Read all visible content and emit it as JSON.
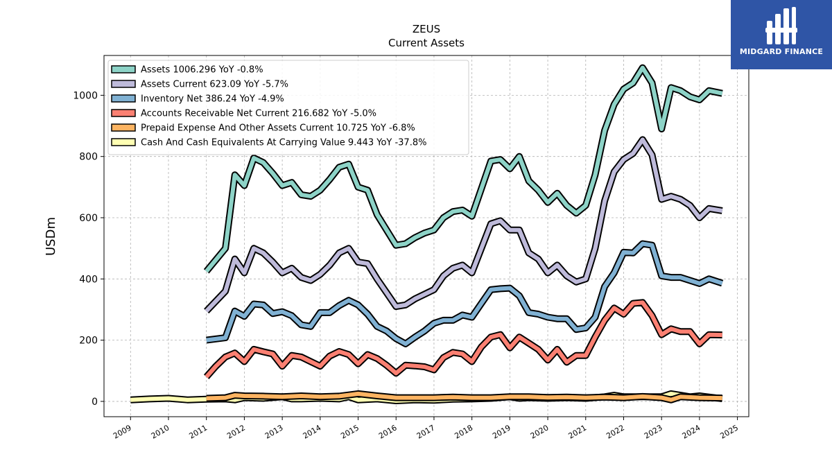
{
  "chart_data": {
    "type": "line",
    "title": "ZEUS",
    "subtitle": "Current  Assets",
    "ylabel": "USDm",
    "xlabel": "",
    "ylim": [
      -50,
      1130
    ],
    "xlim": [
      2008.3,
      2025.3
    ],
    "yticks": [
      0,
      200,
      400,
      600,
      800,
      1000
    ],
    "xticks": [
      2009,
      2010,
      2011,
      2012,
      2013,
      2014,
      2015,
      2016,
      2017,
      2018,
      2019,
      2020,
      2021,
      2022,
      2023,
      2024,
      2025
    ],
    "grid": true,
    "legend_position": "top-left",
    "series": [
      {
        "name": "Assets  1006.296 YoY -0.8%",
        "color": "#8dd3c7",
        "x": [
          2011.0,
          2011.5,
          2011.75,
          2012.0,
          2012.25,
          2012.5,
          2012.75,
          2013.0,
          2013.25,
          2013.5,
          2013.75,
          2014.0,
          2014.25,
          2014.5,
          2014.75,
          2015.0,
          2015.25,
          2015.5,
          2015.75,
          2016.0,
          2016.25,
          2016.5,
          2016.75,
          2017.0,
          2017.25,
          2017.5,
          2017.75,
          2018.0,
          2018.25,
          2018.5,
          2018.75,
          2019.0,
          2019.25,
          2019.5,
          2019.75,
          2020.0,
          2020.25,
          2020.5,
          2020.75,
          2021.0,
          2021.25,
          2021.5,
          2021.75,
          2022.0,
          2022.25,
          2022.5,
          2022.75,
          2023.0,
          2023.25,
          2023.5,
          2023.75,
          2024.0,
          2024.25,
          2024.6
        ],
        "values": [
          425,
          500,
          740,
          705,
          795,
          780,
          745,
          705,
          715,
          675,
          670,
          690,
          725,
          765,
          775,
          700,
          690,
          610,
          560,
          510,
          515,
          535,
          550,
          560,
          600,
          620,
          625,
          605,
          695,
          785,
          790,
          760,
          800,
          720,
          690,
          650,
          680,
          640,
          615,
          640,
          740,
          885,
          970,
          1020,
          1040,
          1090,
          1040,
          890,
          1025,
          1015,
          995,
          985,
          1015,
          1006
        ]
      },
      {
        "name": "Assets Current  623.09 YoY -5.7%",
        "color": "#bebada",
        "x": [
          2011.0,
          2011.5,
          2011.75,
          2012.0,
          2012.25,
          2012.5,
          2012.75,
          2013.0,
          2013.25,
          2013.5,
          2013.75,
          2014.0,
          2014.25,
          2014.5,
          2014.75,
          2015.0,
          2015.25,
          2015.5,
          2015.75,
          2016.0,
          2016.25,
          2016.5,
          2016.75,
          2017.0,
          2017.25,
          2017.5,
          2017.75,
          2018.0,
          2018.25,
          2018.5,
          2018.75,
          2019.0,
          2019.25,
          2019.5,
          2019.75,
          2020.0,
          2020.25,
          2020.5,
          2020.75,
          2021.0,
          2021.25,
          2021.5,
          2021.75,
          2022.0,
          2022.25,
          2022.5,
          2022.75,
          2023.0,
          2023.25,
          2023.5,
          2023.75,
          2024.0,
          2024.25,
          2024.6
        ],
        "values": [
          295,
          360,
          465,
          420,
          500,
          485,
          455,
          420,
          435,
          405,
          395,
          415,
          445,
          485,
          500,
          455,
          450,
          400,
          355,
          310,
          315,
          335,
          350,
          365,
          410,
          435,
          445,
          420,
          500,
          580,
          590,
          560,
          560,
          485,
          465,
          420,
          445,
          410,
          390,
          400,
          500,
          655,
          750,
          790,
          810,
          855,
          805,
          660,
          670,
          660,
          640,
          600,
          630,
          623
        ]
      },
      {
        "name": "Inventory Net  386.24 YoY -4.9%",
        "color": "#80b1d3",
        "x": [
          2011.0,
          2011.5,
          2011.75,
          2012.0,
          2012.25,
          2012.5,
          2012.75,
          2013.0,
          2013.25,
          2013.5,
          2013.75,
          2014.0,
          2014.25,
          2014.5,
          2014.75,
          2015.0,
          2015.25,
          2015.5,
          2015.75,
          2016.0,
          2016.25,
          2016.5,
          2016.75,
          2017.0,
          2017.25,
          2017.5,
          2017.75,
          2018.0,
          2018.25,
          2018.5,
          2018.75,
          2019.0,
          2019.25,
          2019.5,
          2019.75,
          2020.0,
          2020.25,
          2020.5,
          2020.75,
          2021.0,
          2021.25,
          2021.5,
          2021.75,
          2022.0,
          2022.25,
          2022.5,
          2022.75,
          2023.0,
          2023.25,
          2023.5,
          2023.75,
          2024.0,
          2024.25,
          2024.6
        ],
        "values": [
          200,
          208,
          295,
          278,
          318,
          315,
          287,
          293,
          280,
          250,
          245,
          290,
          290,
          313,
          330,
          315,
          285,
          245,
          230,
          205,
          188,
          210,
          230,
          255,
          265,
          265,
          282,
          275,
          320,
          365,
          368,
          370,
          345,
          290,
          285,
          275,
          270,
          270,
          235,
          240,
          275,
          375,
          420,
          487,
          485,
          515,
          510,
          410,
          405,
          405,
          395,
          385,
          400,
          386
        ]
      },
      {
        "name": "Accounts Receivable Net Current  216.682 YoY -5.0%",
        "color": "#fb8072",
        "x": [
          2011.0,
          2011.25,
          2011.5,
          2011.75,
          2012.0,
          2012.25,
          2012.5,
          2012.75,
          2013.0,
          2013.25,
          2013.5,
          2013.75,
          2014.0,
          2014.25,
          2014.5,
          2014.75,
          2015.0,
          2015.25,
          2015.5,
          2015.75,
          2016.0,
          2016.25,
          2016.5,
          2016.75,
          2017.0,
          2017.25,
          2017.5,
          2017.75,
          2018.0,
          2018.25,
          2018.5,
          2018.75,
          2019.0,
          2019.25,
          2019.5,
          2019.75,
          2020.0,
          2020.25,
          2020.5,
          2020.75,
          2021.0,
          2021.25,
          2021.5,
          2021.75,
          2022.0,
          2022.25,
          2022.5,
          2022.75,
          2023.0,
          2023.25,
          2023.5,
          2023.75,
          2024.0,
          2024.25,
          2024.6
        ],
        "values": [
          80,
          115,
          145,
          158,
          130,
          170,
          162,
          155,
          115,
          150,
          145,
          130,
          115,
          148,
          163,
          153,
          123,
          153,
          140,
          118,
          92,
          118,
          116,
          113,
          103,
          143,
          160,
          155,
          130,
          178,
          210,
          218,
          175,
          210,
          190,
          170,
          135,
          170,
          128,
          150,
          150,
          210,
          265,
          305,
          285,
          320,
          323,
          280,
          218,
          237,
          228,
          228,
          188,
          218,
          217
        ]
      },
      {
        "name": "Prepaid Expense And Other Assets Current  10.725 YoY -6.8%",
        "color": "#fdb462",
        "x": [
          2011.0,
          2011.5,
          2011.75,
          2012.0,
          2012.5,
          2013.0,
          2013.5,
          2014.0,
          2014.5,
          2015.0,
          2015.5,
          2016.0,
          2016.5,
          2017.0,
          2017.5,
          2018.0,
          2018.5,
          2019.0,
          2019.5,
          2020.0,
          2020.5,
          2021.0,
          2021.5,
          2022.0,
          2022.5,
          2023.0,
          2023.25,
          2023.5,
          2024.0,
          2024.6
        ],
        "values": [
          10,
          12,
          20,
          18,
          17,
          15,
          18,
          15,
          17,
          25,
          18,
          12,
          12,
          12,
          14,
          12,
          12,
          15,
          15,
          13,
          14,
          12,
          14,
          12,
          16,
          12,
          5,
          15,
          12,
          11
        ]
      },
      {
        "name": "Cash And Cash Equivalents At Carrying Value  9.443 YoY -37.8%",
        "color": "#ffffb3",
        "x": [
          2009.0,
          2009.5,
          2010.0,
          2010.5,
          2011.0,
          2011.5,
          2011.75,
          2012.0,
          2012.5,
          2013.0,
          2013.25,
          2013.5,
          2014.0,
          2014.5,
          2014.75,
          2015.0,
          2015.5,
          2016.0,
          2016.5,
          2017.0,
          2017.5,
          2018.0,
          2018.5,
          2019.0,
          2019.25,
          2019.5,
          2020.0,
          2020.5,
          2021.0,
          2021.5,
          2021.75,
          2022.0,
          2022.5,
          2023.0,
          2023.25,
          2023.5,
          2023.75,
          2024.0,
          2024.25,
          2024.6
        ],
        "values": [
          5,
          8,
          10,
          5,
          7,
          8,
          5,
          12,
          10,
          15,
          8,
          8,
          10,
          8,
          15,
          5,
          8,
          2,
          5,
          4,
          7,
          8,
          10,
          15,
          10,
          12,
          10,
          12,
          10,
          15,
          20,
          15,
          15,
          15,
          25,
          20,
          15,
          18,
          14,
          9
        ]
      }
    ]
  },
  "logo": {
    "text": "MIDGARD FINANCE"
  }
}
